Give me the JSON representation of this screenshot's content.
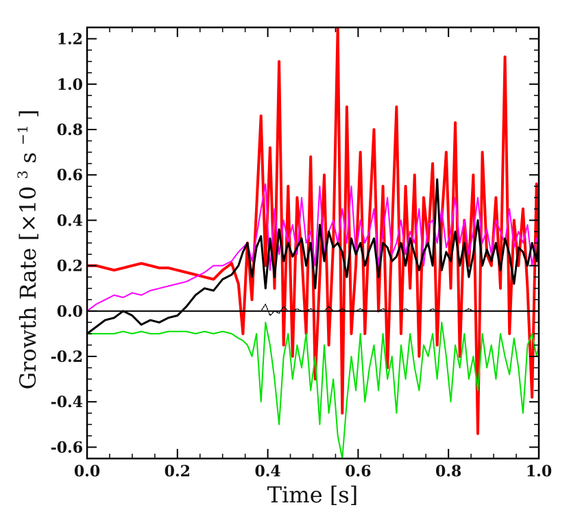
{
  "chart_data": {
    "type": "line",
    "title": "",
    "xlabel": "Time [s]",
    "ylabel": "Growth Rate",
    "ylabel_unit_prefix": "[×10",
    "ylabel_unit_exp1": "3",
    "ylabel_unit_mid": " s",
    "ylabel_unit_exp2": "−1",
    "ylabel_unit_suffix": "]",
    "xlim": [
      0.0,
      1.0
    ],
    "ylim": [
      -0.65,
      1.25
    ],
    "xticks": [
      0.0,
      0.2,
      0.4,
      0.6,
      0.8,
      1.0
    ],
    "xtick_labels": [
      "0.0",
      "0.2",
      "0.4",
      "0.6",
      "0.8",
      "1.0"
    ],
    "yticks": [
      -0.6,
      -0.4,
      -0.2,
      0.0,
      0.2,
      0.4,
      0.6,
      0.8,
      1.0,
      1.2
    ],
    "ytick_labels": [
      "-0.6",
      "-0.4",
      "-0.2",
      "0.0",
      "0.2",
      "0.4",
      "0.6",
      "0.8",
      "1.0",
      "1.2"
    ],
    "x": [
      0.0,
      0.02,
      0.04,
      0.06,
      0.08,
      0.1,
      0.12,
      0.14,
      0.16,
      0.18,
      0.2,
      0.22,
      0.24,
      0.26,
      0.28,
      0.3,
      0.32,
      0.335,
      0.345,
      0.355,
      0.365,
      0.375,
      0.385,
      0.395,
      0.405,
      0.415,
      0.425,
      0.435,
      0.445,
      0.455,
      0.465,
      0.475,
      0.485,
      0.495,
      0.505,
      0.515,
      0.525,
      0.535,
      0.545,
      0.555,
      0.565,
      0.575,
      0.585,
      0.595,
      0.605,
      0.615,
      0.625,
      0.635,
      0.645,
      0.655,
      0.665,
      0.675,
      0.685,
      0.695,
      0.705,
      0.715,
      0.725,
      0.735,
      0.745,
      0.755,
      0.765,
      0.775,
      0.785,
      0.795,
      0.805,
      0.815,
      0.825,
      0.835,
      0.845,
      0.855,
      0.865,
      0.875,
      0.885,
      0.895,
      0.905,
      0.915,
      0.925,
      0.935,
      0.945,
      0.955,
      0.965,
      0.975,
      0.985,
      0.995,
      1.0
    ],
    "series": [
      {
        "name": "red",
        "color": "#ff0000",
        "stroke_width": 4,
        "values": [
          0.2,
          0.2,
          0.19,
          0.18,
          0.19,
          0.2,
          0.21,
          0.2,
          0.19,
          0.19,
          0.18,
          0.17,
          0.16,
          0.15,
          0.14,
          0.18,
          0.21,
          0.12,
          -0.1,
          0.3,
          0.05,
          0.45,
          0.86,
          0.2,
          0.72,
          0.1,
          1.1,
          -0.15,
          0.55,
          -0.2,
          0.5,
          0.25,
          -0.1,
          0.68,
          -0.3,
          0.15,
          0.6,
          -0.15,
          0.3,
          1.25,
          -0.45,
          0.9,
          -0.1,
          0.2,
          0.7,
          -0.1,
          0.4,
          0.8,
          0.0,
          0.55,
          -0.25,
          0.35,
          0.9,
          -0.1,
          0.55,
          0.1,
          0.6,
          -0.2,
          0.5,
          0.3,
          0.65,
          -0.15,
          0.4,
          0.7,
          0.1,
          0.83,
          -0.2,
          0.4,
          0.2,
          0.6,
          -0.54,
          0.7,
          0.25,
          0.2,
          0.5,
          0.1,
          1.12,
          -0.1,
          0.4,
          0.2,
          0.45,
          0.1,
          -0.38,
          0.56,
          0.2
        ]
      },
      {
        "name": "magenta",
        "color": "#ff00ff",
        "stroke_width": 2,
        "values": [
          0.0,
          0.03,
          0.05,
          0.07,
          0.06,
          0.08,
          0.07,
          0.09,
          0.1,
          0.11,
          0.12,
          0.13,
          0.15,
          0.17,
          0.2,
          0.2,
          0.22,
          0.26,
          0.28,
          0.3,
          0.22,
          0.33,
          0.45,
          0.56,
          0.18,
          0.45,
          0.25,
          0.4,
          0.3,
          0.38,
          0.25,
          0.5,
          0.3,
          0.35,
          0.2,
          0.55,
          0.25,
          0.35,
          0.4,
          0.3,
          0.45,
          0.3,
          0.55,
          0.25,
          0.4,
          0.3,
          0.35,
          0.45,
          0.2,
          0.35,
          0.5,
          0.25,
          0.3,
          0.4,
          0.25,
          0.35,
          0.3,
          0.45,
          0.2,
          0.38,
          0.4,
          0.3,
          0.45,
          0.28,
          0.35,
          0.5,
          0.3,
          0.4,
          0.25,
          0.35,
          0.5,
          0.3,
          0.36,
          0.25,
          0.4,
          0.35,
          0.3,
          0.45,
          0.28,
          0.35,
          0.3,
          0.38,
          0.2,
          0.32,
          0.3
        ]
      },
      {
        "name": "black",
        "color": "#000000",
        "stroke_width": 3,
        "values": [
          -0.1,
          -0.07,
          -0.04,
          -0.03,
          0.0,
          -0.02,
          -0.06,
          -0.04,
          -0.05,
          -0.03,
          -0.02,
          0.02,
          0.07,
          0.1,
          0.09,
          0.14,
          0.16,
          0.2,
          0.26,
          0.3,
          0.15,
          0.28,
          0.33,
          0.1,
          0.32,
          0.15,
          0.36,
          0.22,
          0.3,
          0.24,
          0.28,
          0.32,
          0.2,
          0.3,
          0.1,
          0.38,
          0.22,
          0.35,
          0.28,
          0.3,
          0.26,
          0.15,
          0.32,
          0.25,
          0.3,
          0.2,
          0.27,
          0.32,
          0.15,
          0.3,
          0.28,
          0.22,
          0.24,
          0.3,
          0.2,
          0.32,
          0.25,
          0.18,
          0.26,
          0.3,
          0.2,
          0.58,
          0.18,
          0.26,
          0.22,
          0.35,
          0.2,
          0.3,
          0.15,
          0.25,
          0.4,
          0.2,
          0.27,
          0.22,
          0.3,
          0.18,
          0.32,
          0.25,
          0.12,
          0.28,
          0.26,
          0.2,
          0.3,
          0.22,
          0.32
        ]
      },
      {
        "name": "green",
        "color": "#00e000",
        "stroke_width": 2,
        "values": [
          -0.1,
          -0.1,
          -0.1,
          -0.1,
          -0.09,
          -0.1,
          -0.09,
          -0.1,
          -0.1,
          -0.09,
          -0.09,
          -0.09,
          -0.1,
          -0.09,
          -0.1,
          -0.09,
          -0.1,
          -0.12,
          -0.13,
          -0.15,
          -0.2,
          -0.1,
          -0.4,
          -0.05,
          -0.15,
          -0.3,
          -0.5,
          -0.2,
          -0.1,
          -0.3,
          -0.15,
          -0.25,
          -0.1,
          -0.35,
          -0.2,
          -0.5,
          -0.15,
          -0.45,
          -0.3,
          -0.55,
          -0.65,
          -0.4,
          -0.2,
          -0.35,
          -0.1,
          -0.4,
          -0.25,
          -0.15,
          -0.35,
          -0.1,
          -0.3,
          -0.2,
          -0.45,
          -0.15,
          -0.3,
          -0.1,
          -0.25,
          -0.35,
          -0.15,
          -0.2,
          -0.1,
          -0.3,
          -0.05,
          -0.2,
          -0.4,
          -0.15,
          -0.25,
          -0.1,
          -0.3,
          -0.2,
          -0.35,
          -0.1,
          -0.25,
          -0.15,
          -0.3,
          -0.1,
          -0.2,
          -0.28,
          -0.12,
          -0.25,
          -0.45,
          -0.15,
          -0.1,
          -0.2,
          -0.15
        ]
      },
      {
        "name": "black-dotted",
        "color": "#000000",
        "stroke_width": 1.5,
        "dashed": true,
        "values": [
          0.0,
          0.0,
          0.0,
          0.0,
          0.0,
          0.0,
          0.0,
          0.0,
          0.0,
          0.0,
          0.0,
          0.0,
          0.0,
          0.0,
          0.0,
          0.0,
          0.0,
          0.0,
          0.0,
          0.0,
          0.0,
          0.0,
          0.0,
          0.03,
          -0.02,
          0.0,
          -0.01,
          0.02,
          0.0,
          0.0,
          0.01,
          0.0,
          0.0,
          0.01,
          0.0,
          0.0,
          0.0,
          0.02,
          0.0,
          0.0,
          0.01,
          0.0,
          0.0,
          0.0,
          0.01,
          0.0,
          0.0,
          0.0,
          0.0,
          0.01,
          0.0,
          0.0,
          0.0,
          0.0,
          0.01,
          0.0,
          0.0,
          0.0,
          0.0,
          0.0,
          0.01,
          0.0,
          0.0,
          0.0,
          0.0,
          0.0,
          0.0,
          0.0,
          0.01,
          0.0,
          0.0,
          0.0,
          0.0,
          0.0,
          0.0,
          0.0,
          0.0,
          0.0,
          0.0,
          0.0,
          0.0,
          0.0,
          0.0,
          0.0,
          0.0
        ]
      }
    ],
    "reference_line": {
      "y": 0.0,
      "color": "#000000"
    }
  }
}
